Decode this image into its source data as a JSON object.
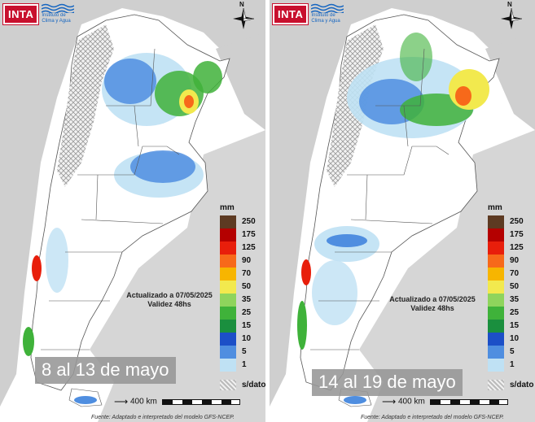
{
  "panels": [
    {
      "logo_text": "INTA",
      "institute_line1": "Instituto de",
      "institute_line2": "Clima y Agua",
      "north_label": "N",
      "legend_unit": "mm",
      "legend": [
        {
          "label": "250",
          "color": "#5d3a22"
        },
        {
          "label": "175",
          "color": "#b40000"
        },
        {
          "label": "125",
          "color": "#e81e0b"
        },
        {
          "label": "90",
          "color": "#f7691a"
        },
        {
          "label": "70",
          "color": "#f7b500"
        },
        {
          "label": "50",
          "color": "#f2e94e"
        },
        {
          "label": "35",
          "color": "#8fd45c"
        },
        {
          "label": "25",
          "color": "#3fb23a"
        },
        {
          "label": "15",
          "color": "#1a8f3e"
        },
        {
          "label": "10",
          "color": "#1c4fc7"
        },
        {
          "label": "5",
          "color": "#4f8ee0"
        },
        {
          "label": "1",
          "color": "#bfe1f4"
        },
        {
          "label": "s/dato",
          "color": "#d8d8d8"
        }
      ],
      "updated_line1": "Actualizado a 07/05/2025",
      "updated_line2": "Validez 48hs",
      "date_label": "8 al 13 de mayo",
      "scale_label": "400 km",
      "source": "Fuente: Adaptado e interpretado del modelo GFS-NCEP."
    },
    {
      "logo_text": "INTA",
      "institute_line1": "Instituto de",
      "institute_line2": "Clima y Agua",
      "north_label": "N",
      "legend_unit": "mm",
      "legend": [
        {
          "label": "250",
          "color": "#5d3a22"
        },
        {
          "label": "175",
          "color": "#b40000"
        },
        {
          "label": "125",
          "color": "#e81e0b"
        },
        {
          "label": "90",
          "color": "#f7691a"
        },
        {
          "label": "70",
          "color": "#f7b500"
        },
        {
          "label": "50",
          "color": "#f2e94e"
        },
        {
          "label": "35",
          "color": "#8fd45c"
        },
        {
          "label": "25",
          "color": "#3fb23a"
        },
        {
          "label": "15",
          "color": "#1a8f3e"
        },
        {
          "label": "10",
          "color": "#1c4fc7"
        },
        {
          "label": "5",
          "color": "#4f8ee0"
        },
        {
          "label": "1",
          "color": "#bfe1f4"
        },
        {
          "label": "s/dato",
          "color": "#d8d8d8"
        }
      ],
      "updated_line1": "Actualizado a 07/05/2025",
      "updated_line2": "Validez 48hs",
      "date_label": "14 al 19 de mayo",
      "scale_label": "400 km",
      "source": "Fuente: Adaptado e interpretado del modelo GFS-NCEP."
    }
  ]
}
